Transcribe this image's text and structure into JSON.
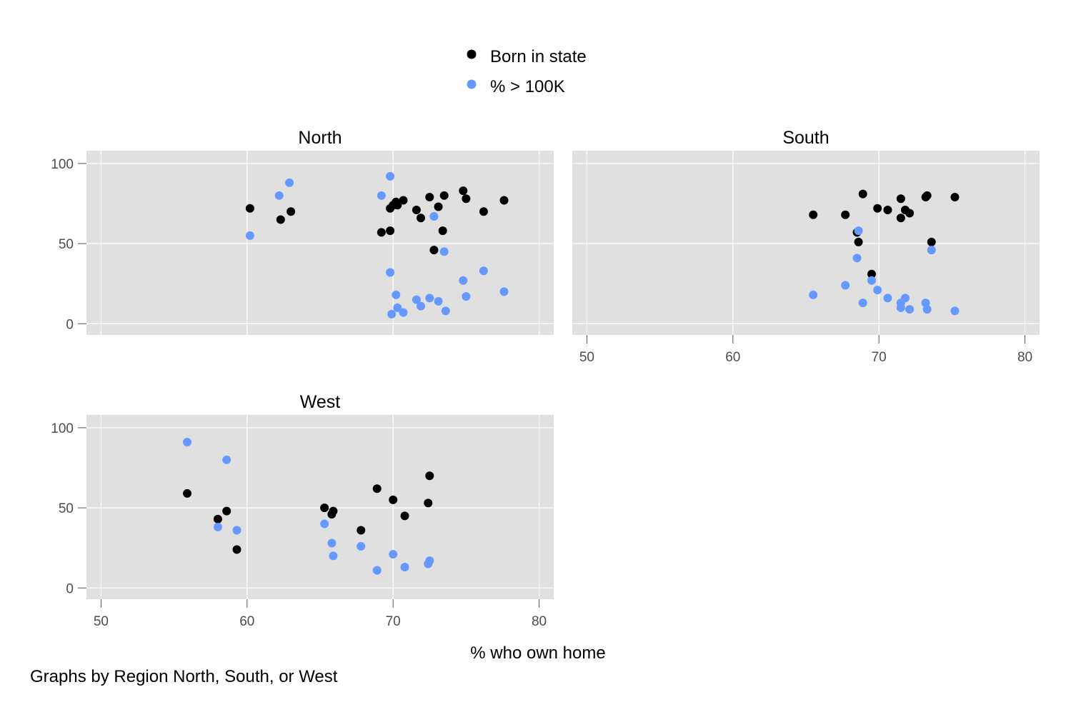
{
  "chart_data": {
    "type": "scatter",
    "xlabel": "% who own home",
    "note": "Graphs by Region North, South, or West",
    "xlim": [
      49,
      81
    ],
    "ylim": [
      -7,
      108
    ],
    "x_ticks": [
      50,
      60,
      70,
      80
    ],
    "y_ticks": [
      0,
      50,
      100
    ],
    "grid": true,
    "legend": {
      "placement": "top-center",
      "entries": [
        {
          "label": "Born in state",
          "color": "#000000"
        },
        {
          "label": "% > 100K",
          "color": "#6699ff"
        }
      ]
    },
    "panels": [
      {
        "title": "North",
        "show_x_axis": false,
        "show_y_axis": true,
        "series": [
          {
            "name": "Born in state",
            "color": "#000000",
            "points": [
              [
                60.2,
                72
              ],
              [
                62.3,
                65
              ],
              [
                63.0,
                70
              ],
              [
                69.2,
                57
              ],
              [
                69.8,
                58
              ],
              [
                69.8,
                72
              ],
              [
                70.0,
                74
              ],
              [
                70.2,
                76
              ],
              [
                70.3,
                74
              ],
              [
                70.7,
                77
              ],
              [
                71.6,
                71
              ],
              [
                71.9,
                66
              ],
              [
                72.5,
                79
              ],
              [
                72.8,
                46
              ],
              [
                73.1,
                73
              ],
              [
                73.4,
                58
              ],
              [
                73.5,
                80
              ],
              [
                74.8,
                83
              ],
              [
                75.0,
                78
              ],
              [
                76.2,
                70
              ],
              [
                77.6,
                77
              ]
            ]
          },
          {
            "name": "% > 100K",
            "color": "#6699ff",
            "points": [
              [
                60.2,
                55
              ],
              [
                62.2,
                80
              ],
              [
                62.9,
                88
              ],
              [
                69.2,
                80
              ],
              [
                69.8,
                92
              ],
              [
                69.8,
                32
              ],
              [
                69.9,
                6
              ],
              [
                70.2,
                18
              ],
              [
                70.3,
                10
              ],
              [
                70.7,
                7
              ],
              [
                71.6,
                15
              ],
              [
                71.9,
                11
              ],
              [
                72.5,
                16
              ],
              [
                72.8,
                67
              ],
              [
                73.1,
                14
              ],
              [
                73.5,
                45
              ],
              [
                73.6,
                8
              ],
              [
                74.8,
                27
              ],
              [
                75.0,
                17
              ],
              [
                76.2,
                33
              ],
              [
                77.6,
                20
              ]
            ]
          }
        ]
      },
      {
        "title": "South",
        "show_x_axis": true,
        "show_y_axis": false,
        "series": [
          {
            "name": "Born in state",
            "color": "#000000",
            "points": [
              [
                65.5,
                68
              ],
              [
                67.7,
                68
              ],
              [
                68.5,
                57
              ],
              [
                68.6,
                51
              ],
              [
                68.9,
                81
              ],
              [
                69.5,
                31
              ],
              [
                69.9,
                72
              ],
              [
                70.6,
                71
              ],
              [
                71.5,
                66
              ],
              [
                71.5,
                78
              ],
              [
                71.8,
                71
              ],
              [
                72.1,
                69
              ],
              [
                73.2,
                79
              ],
              [
                73.3,
                80
              ],
              [
                73.6,
                51
              ],
              [
                75.2,
                79
              ]
            ]
          },
          {
            "name": "% > 100K",
            "color": "#6699ff",
            "points": [
              [
                65.5,
                18
              ],
              [
                67.7,
                24
              ],
              [
                68.5,
                41
              ],
              [
                68.6,
                58
              ],
              [
                68.9,
                13
              ],
              [
                69.5,
                27
              ],
              [
                69.9,
                21
              ],
              [
                70.6,
                16
              ],
              [
                71.5,
                10
              ],
              [
                71.5,
                13
              ],
              [
                71.8,
                16
              ],
              [
                72.1,
                9
              ],
              [
                73.2,
                13
              ],
              [
                73.3,
                9
              ],
              [
                73.6,
                46
              ],
              [
                75.2,
                8
              ]
            ]
          }
        ]
      },
      {
        "title": "West",
        "show_x_axis": true,
        "show_y_axis": true,
        "series": [
          {
            "name": "Born in state",
            "color": "#000000",
            "points": [
              [
                55.9,
                59
              ],
              [
                58.0,
                43
              ],
              [
                58.6,
                48
              ],
              [
                59.3,
                24
              ],
              [
                65.3,
                50
              ],
              [
                65.8,
                46
              ],
              [
                65.9,
                48
              ],
              [
                67.8,
                36
              ],
              [
                68.9,
                62
              ],
              [
                70.0,
                55
              ],
              [
                70.8,
                45
              ],
              [
                72.4,
                53
              ],
              [
                72.5,
                70
              ]
            ]
          },
          {
            "name": "% > 100K",
            "color": "#6699ff",
            "points": [
              [
                55.9,
                91
              ],
              [
                58.0,
                38
              ],
              [
                58.6,
                80
              ],
              [
                59.3,
                36
              ],
              [
                65.3,
                40
              ],
              [
                65.8,
                28
              ],
              [
                65.9,
                20
              ],
              [
                67.8,
                26
              ],
              [
                68.9,
                11
              ],
              [
                70.0,
                21
              ],
              [
                70.8,
                13
              ],
              [
                72.4,
                15
              ],
              [
                72.5,
                17
              ]
            ]
          }
        ]
      }
    ]
  }
}
